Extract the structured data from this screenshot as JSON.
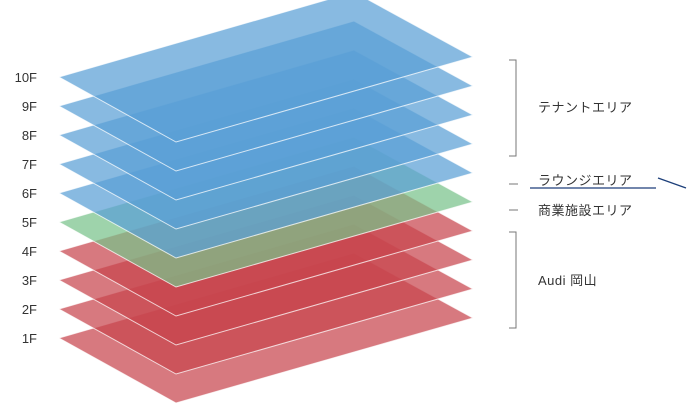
{
  "floors": [
    {
      "label": "1F",
      "zone": "audi"
    },
    {
      "label": "2F",
      "zone": "audi"
    },
    {
      "label": "3F",
      "zone": "audi"
    },
    {
      "label": "4F",
      "zone": "audi"
    },
    {
      "label": "5F",
      "zone": "commercial"
    },
    {
      "label": "6F",
      "zone": "lounge"
    },
    {
      "label": "7F",
      "zone": "tenant"
    },
    {
      "label": "8F",
      "zone": "tenant"
    },
    {
      "label": "9F",
      "zone": "tenant"
    },
    {
      "label": "10F",
      "zone": "tenant"
    }
  ],
  "zones": {
    "tenant": {
      "label": "テナントエリア",
      "color": "#5a9fd6"
    },
    "lounge": {
      "label": "ラウンジエリア",
      "color": "#5a9fd6"
    },
    "commercial": {
      "label": "商業施設エリア",
      "color": "#78c28a"
    },
    "audi": {
      "label": "Audi 岡山",
      "color": "#c8454e"
    }
  }
}
